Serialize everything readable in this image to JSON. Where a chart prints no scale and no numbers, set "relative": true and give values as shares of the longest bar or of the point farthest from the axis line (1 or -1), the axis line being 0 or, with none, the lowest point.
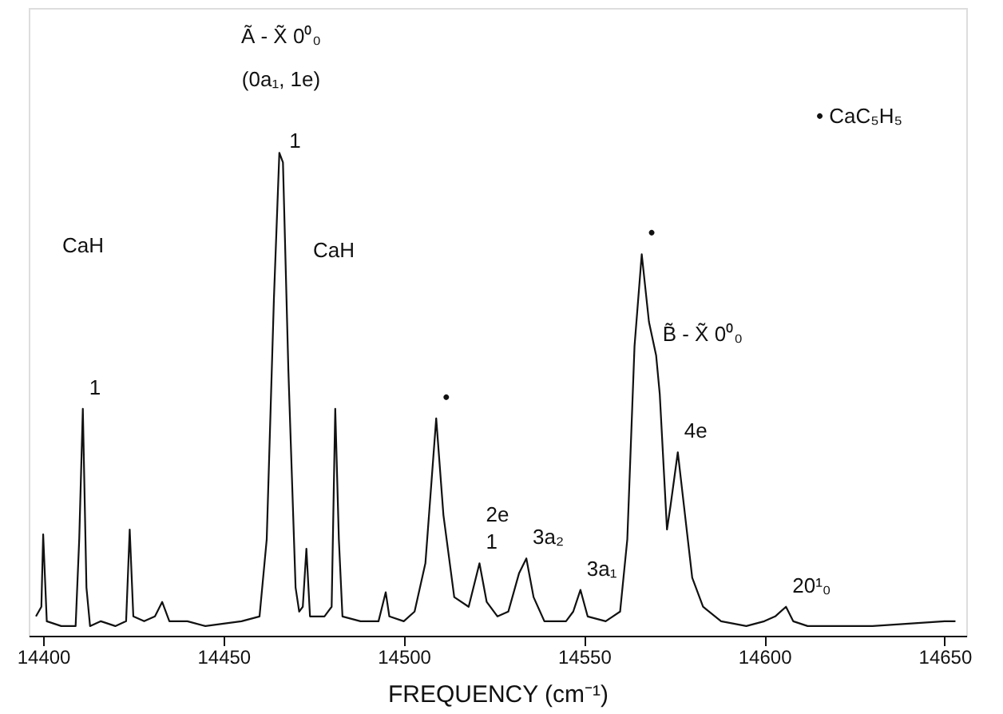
{
  "chart_data": {
    "type": "line",
    "relative": true,
    "xlabel": "FREQUENCY (cm⁻¹)",
    "xlim": [
      14396,
      14656
    ],
    "xticks": [
      14400,
      14450,
      14500,
      14550,
      14600,
      14650
    ],
    "grid": false,
    "marker": "none",
    "line_style": "solid",
    "tick_labels": "x",
    "series": [
      {
        "color": "#111111",
        "x": [
          14398,
          14399.5,
          14400,
          14401,
          14405,
          14409,
          14410,
          14411,
          14412,
          14413,
          14416,
          14420,
          14423,
          14424,
          14425,
          14428,
          14431,
          14433,
          14435,
          14440,
          14445,
          14450,
          14455,
          14460,
          14462,
          14464,
          14465.5,
          14466.5,
          14468,
          14470,
          14471,
          14472,
          14473,
          14474,
          14478,
          14480,
          14481,
          14482,
          14483,
          14488,
          14493,
          14495,
          14496,
          14500,
          14503,
          14506,
          14509,
          14511,
          14514,
          14518,
          14521,
          14523,
          14526,
          14529,
          14532,
          14534,
          14536,
          14539,
          14545,
          14547,
          14549,
          14551,
          14556,
          14560,
          14562,
          14564,
          14566,
          14568,
          14570,
          14571,
          14573,
          14574,
          14576,
          14578,
          14580,
          14583,
          14588,
          14595,
          14600,
          14603,
          14606,
          14608,
          14612,
          14620,
          14630,
          14640,
          14650,
          14653
        ],
        "values": [
          0.04,
          0.06,
          0.21,
          0.03,
          0.02,
          0.02,
          0.2,
          0.47,
          0.1,
          0.02,
          0.03,
          0.02,
          0.03,
          0.22,
          0.04,
          0.03,
          0.04,
          0.07,
          0.03,
          0.03,
          0.02,
          0.025,
          0.03,
          0.04,
          0.2,
          0.7,
          1.0,
          0.98,
          0.55,
          0.1,
          0.05,
          0.06,
          0.18,
          0.04,
          0.04,
          0.06,
          0.47,
          0.2,
          0.04,
          0.03,
          0.03,
          0.09,
          0.04,
          0.03,
          0.05,
          0.15,
          0.45,
          0.25,
          0.08,
          0.06,
          0.15,
          0.07,
          0.04,
          0.05,
          0.13,
          0.16,
          0.08,
          0.03,
          0.03,
          0.05,
          0.095,
          0.04,
          0.03,
          0.05,
          0.2,
          0.6,
          0.79,
          0.65,
          0.58,
          0.5,
          0.22,
          0.27,
          0.38,
          0.25,
          0.12,
          0.06,
          0.03,
          0.02,
          0.03,
          0.04,
          0.06,
          0.03,
          0.02,
          0.02,
          0.02,
          0.025,
          0.03,
          0.03
        ]
      }
    ],
    "annotations": [
      "Ã - X̃ 0⁰₀",
      "(0a₁, 1e)",
      "• CaC₅H₅",
      "CaH",
      "CaH",
      {
        "text": "1",
        "x": 14411,
        "y": 0.47
      },
      {
        "text": "1",
        "x": 14466.5,
        "y": 0.98
      },
      {
        "text": "•",
        "x": 14509,
        "y": 0.45
      },
      {
        "text": "1",
        "x": 14521,
        "y": 0.15
      },
      {
        "text": "2e",
        "x": 14521,
        "y": 0.15
      },
      {
        "text": "3a₂",
        "x": 14534,
        "y": 0.16
      },
      {
        "text": "3a₁",
        "x": 14549,
        "y": 0.095
      },
      {
        "text": "•",
        "x": 14566,
        "y": 0.79
      },
      {
        "text": "B̃ - X̃ 0⁰₀",
        "x": 14570,
        "y": 0.58
      },
      {
        "text": "4e",
        "x": 14576,
        "y": 0.38
      },
      {
        "text": "20¹₀",
        "x": 14606,
        "y": 0.06
      }
    ]
  }
}
